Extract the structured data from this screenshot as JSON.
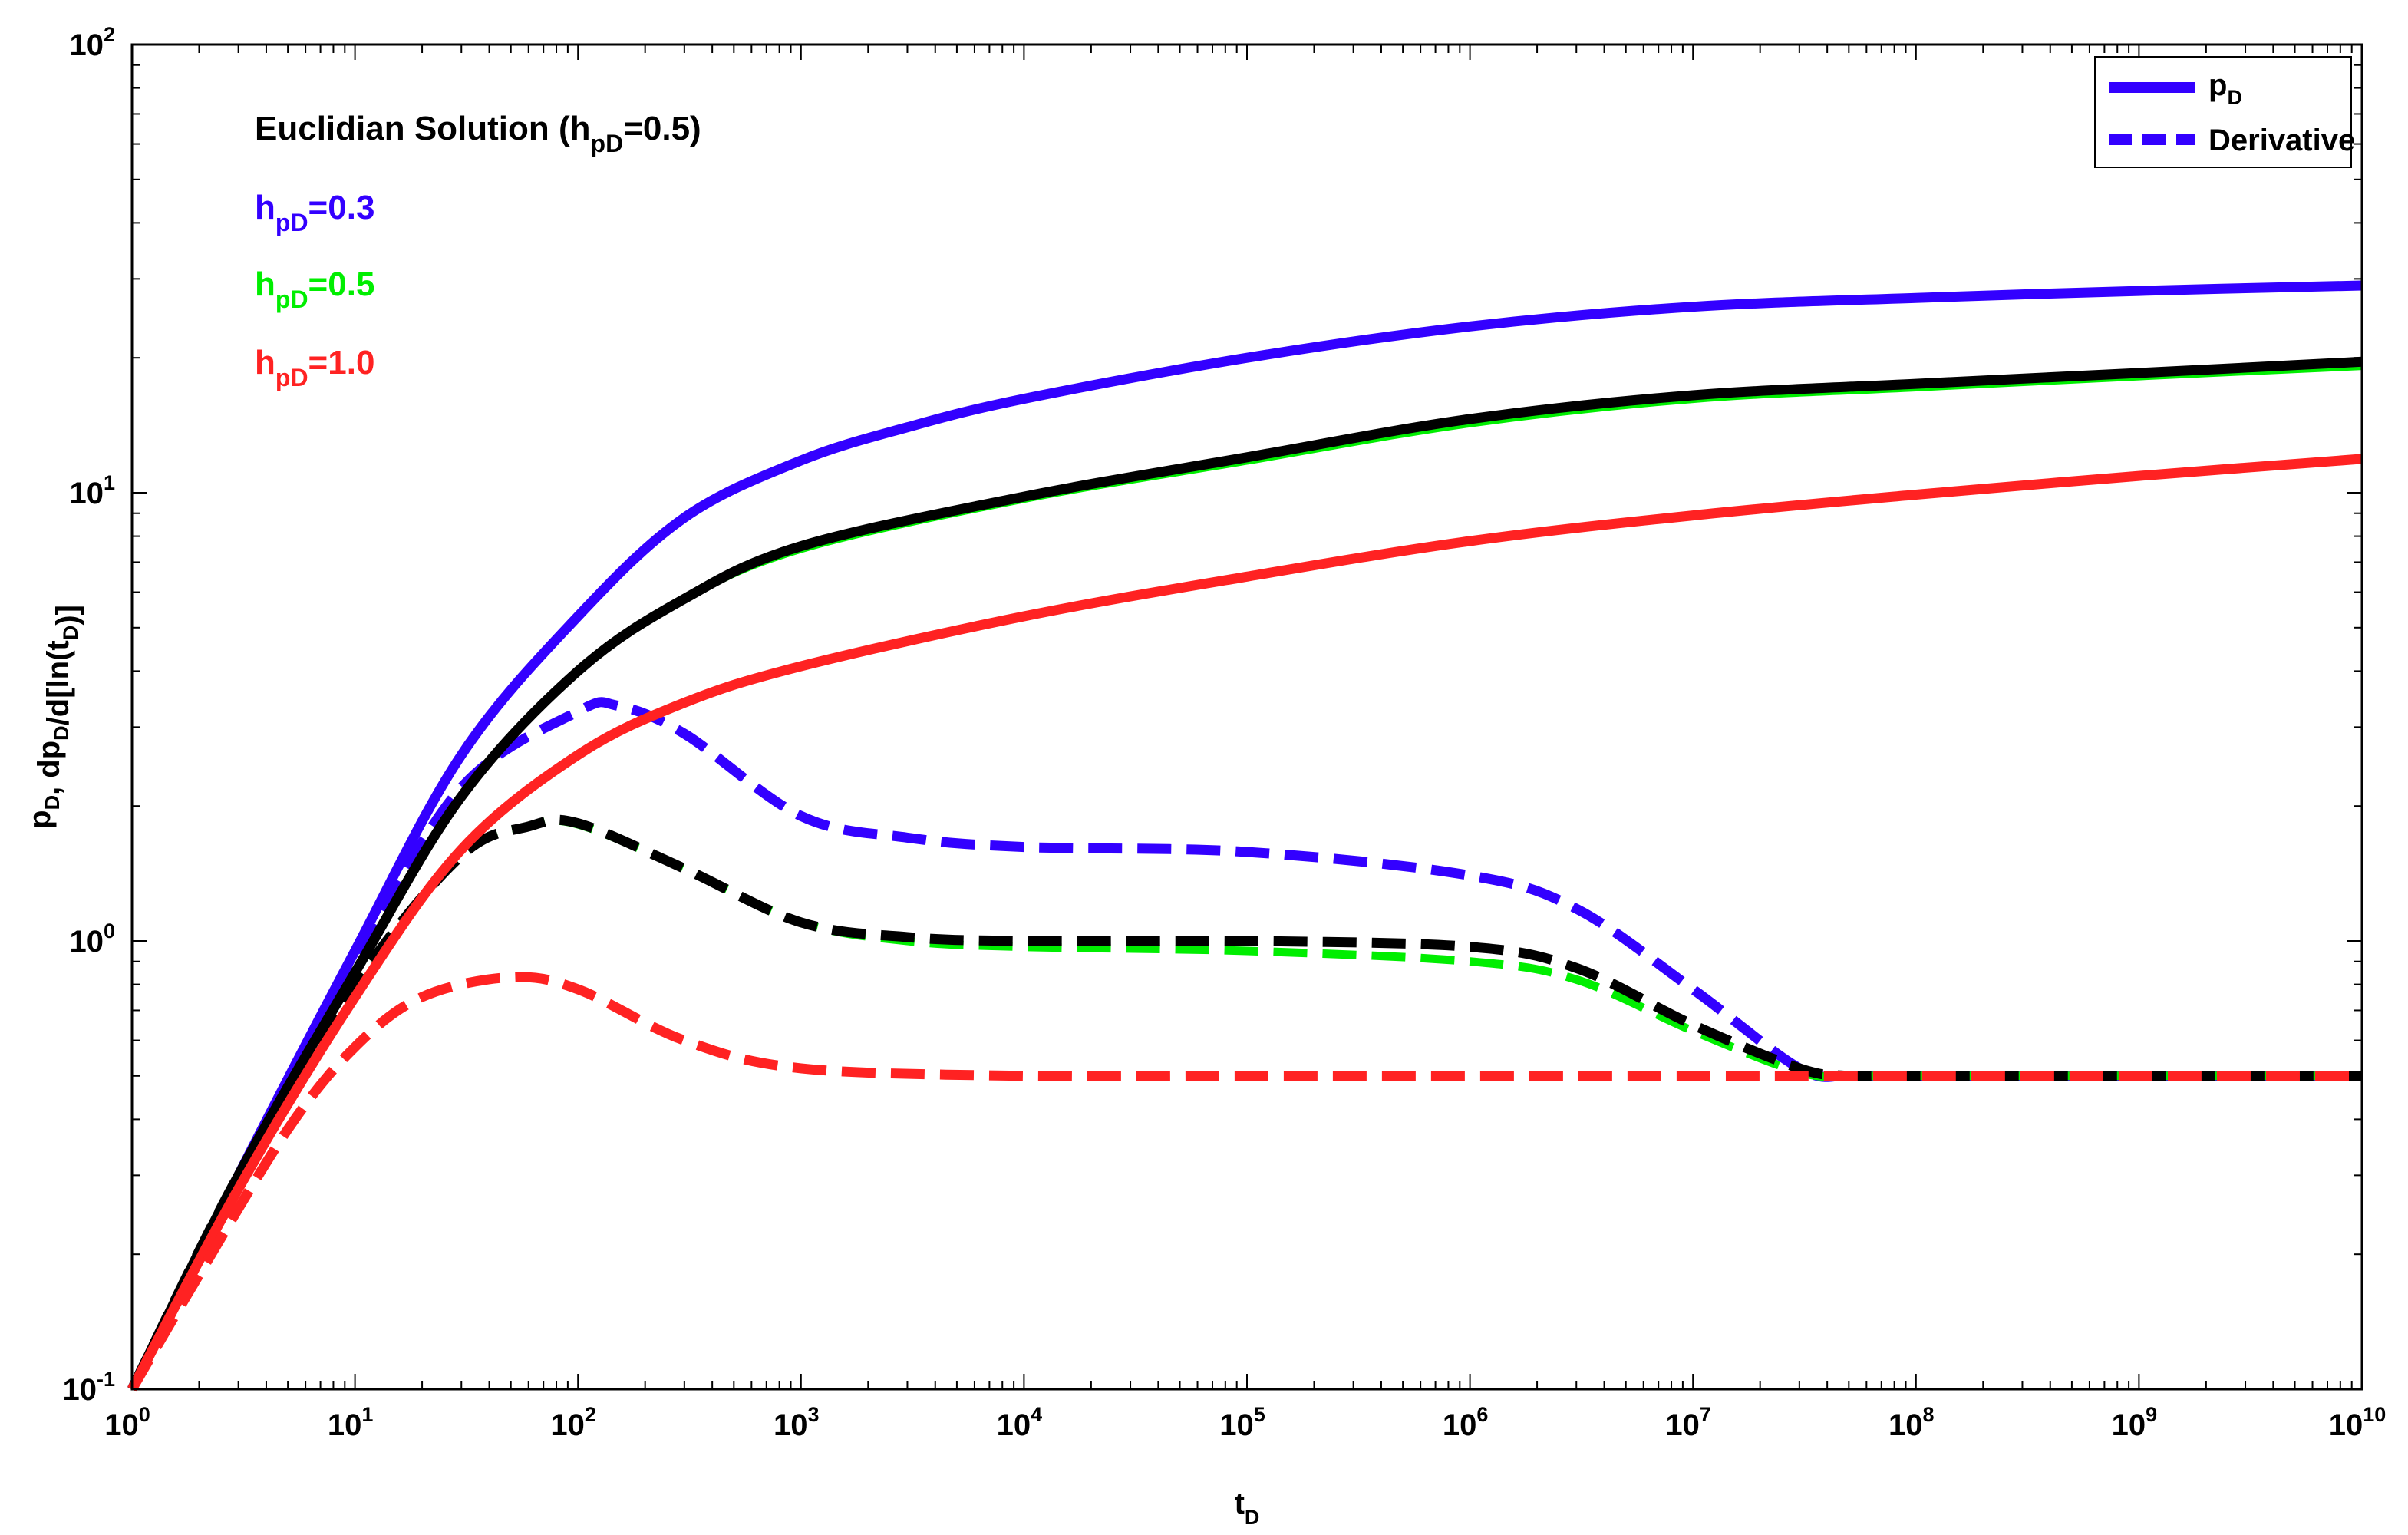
{
  "chart_data": {
    "type": "line",
    "title": "",
    "xlabel": {
      "main": "t",
      "sub": "D"
    },
    "ylabel": {
      "parts": [
        {
          "t": "p",
          "s": "D"
        },
        {
          "t": ", dp",
          "s": "D"
        },
        {
          "t": "/d[ln(t",
          "s": "D"
        },
        {
          "t": ")]",
          "s": ""
        }
      ]
    },
    "x_scale": "log",
    "y_scale": "log",
    "xlim": [
      1,
      10000000000
    ],
    "ylim": [
      0.1,
      100
    ],
    "x_ticks": [
      {
        "value": 1,
        "base": "10",
        "exp": "0"
      },
      {
        "value": 10,
        "base": "10",
        "exp": "1"
      },
      {
        "value": 100,
        "base": "10",
        "exp": "2"
      },
      {
        "value": 1000,
        "base": "10",
        "exp": "3"
      },
      {
        "value": 10000,
        "base": "10",
        "exp": "4"
      },
      {
        "value": 100000,
        "base": "10",
        "exp": "5"
      },
      {
        "value": 1000000,
        "base": "10",
        "exp": "6"
      },
      {
        "value": 10000000,
        "base": "10",
        "exp": "7"
      },
      {
        "value": 100000000,
        "base": "10",
        "exp": "8"
      },
      {
        "value": 1000000000,
        "base": "10",
        "exp": "9"
      },
      {
        "value": 10000000000,
        "base": "10",
        "exp": "10"
      }
    ],
    "y_ticks": [
      {
        "value": 0.1,
        "base": "10",
        "exp": "-1"
      },
      {
        "value": 1,
        "base": "10",
        "exp": "0"
      },
      {
        "value": 10,
        "base": "10",
        "exp": "1"
      },
      {
        "value": 100,
        "base": "10",
        "exp": "2"
      }
    ],
    "grid": false,
    "legend": {
      "position": "top-right",
      "entries": [
        {
          "text": "p",
          "sub": "D",
          "style": "solid",
          "color": "#3300ff"
        },
        {
          "text": "Derivative",
          "sub": "",
          "style": "dashed",
          "color": "#3300ff"
        }
      ]
    },
    "annotations": [
      {
        "text": "Euclidian Solution (h",
        "sub": "pD",
        "tail": "=0.5)",
        "color": "#000000"
      },
      {
        "text": "h",
        "sub": "pD",
        "tail": "=0.3",
        "color": "#3300ff"
      },
      {
        "text": "h",
        "sub": "pD",
        "tail": "=0.5",
        "color": "#00ee00"
      },
      {
        "text": "h",
        "sub": "pD",
        "tail": "=1.0",
        "color": "#ff2222"
      }
    ],
    "series": [
      {
        "color": "#3300ff",
        "style": "solid",
        "x": [
          1,
          3,
          10,
          30,
          100,
          300,
          1000,
          3000,
          10000,
          100000,
          1000000,
          10000000,
          100000000,
          1000000000,
          10000000000
        ],
        "y": [
          0.1,
          0.3,
          0.95,
          2.6,
          5.3,
          8.8,
          11.8,
          14,
          16.2,
          20,
          23.5,
          26,
          27.2,
          28.2,
          29
        ]
      },
      {
        "color": "#3300ff",
        "style": "dashed",
        "x": [
          1,
          3,
          10,
          30,
          100,
          150,
          300,
          1000,
          3000,
          10000,
          100000,
          1000000,
          3000000,
          10000000,
          30000000,
          50000000,
          100000000,
          1000000000,
          10000000000
        ],
        "y": [
          0.1,
          0.3,
          0.9,
          2.2,
          3.25,
          3.35,
          2.9,
          1.9,
          1.7,
          1.62,
          1.58,
          1.4,
          1.18,
          0.78,
          0.52,
          0.5,
          0.5,
          0.5,
          0.5
        ]
      },
      {
        "color": "#00ee00",
        "style": "solid",
        "x": [
          1,
          3,
          10,
          30,
          100,
          300,
          1000,
          10000,
          100000,
          1000000,
          10000000,
          100000000,
          1000000000,
          10000000000
        ],
        "y": [
          0.1,
          0.3,
          0.85,
          2.1,
          4.0,
          5.8,
          7.5,
          9.7,
          11.8,
          14.3,
          16.2,
          17.2,
          18.2,
          19.2
        ]
      },
      {
        "color": "#00ee00",
        "style": "dashed",
        "x": [
          1,
          3,
          10,
          30,
          60,
          100,
          300,
          1000,
          3000,
          10000,
          100000,
          1000000,
          3000000,
          10000000,
          30000000,
          50000000,
          100000000,
          10000000000
        ],
        "y": [
          0.1,
          0.3,
          0.8,
          1.55,
          1.8,
          1.82,
          1.45,
          1.1,
          1.0,
          0.97,
          0.95,
          0.9,
          0.82,
          0.63,
          0.51,
          0.5,
          0.5,
          0.5
        ]
      },
      {
        "color": "#000000",
        "style": "solid",
        "x": [
          1,
          3,
          10,
          30,
          100,
          300,
          1000,
          10000,
          100000,
          1000000,
          10000000,
          100000000,
          1000000000,
          10000000000
        ],
        "y": [
          0.1,
          0.3,
          0.85,
          2.1,
          4.0,
          5.8,
          7.6,
          9.8,
          12,
          14.6,
          16.5,
          17.5,
          18.5,
          19.6
        ]
      },
      {
        "color": "#000000",
        "style": "dashed",
        "x": [
          1,
          3,
          10,
          30,
          60,
          100,
          300,
          1000,
          3000,
          10000,
          100000,
          1000000,
          3000000,
          10000000,
          30000000,
          50000000,
          100000000,
          10000000000
        ],
        "y": [
          0.1,
          0.3,
          0.8,
          1.55,
          1.8,
          1.83,
          1.45,
          1.1,
          1.02,
          1.0,
          1.0,
          0.97,
          0.87,
          0.65,
          0.52,
          0.5,
          0.5,
          0.5
        ]
      },
      {
        "color": "#ff2222",
        "style": "solid",
        "x": [
          1,
          3,
          10,
          30,
          100,
          300,
          1000,
          10000,
          100000,
          1000000,
          10000000,
          100000000,
          1000000000,
          10000000000
        ],
        "y": [
          0.1,
          0.28,
          0.75,
          1.6,
          2.6,
          3.4,
          4.1,
          5.3,
          6.5,
          7.8,
          8.9,
          9.9,
          10.9,
          11.9
        ]
      },
      {
        "color": "#ff2222",
        "style": "dashed",
        "x": [
          1,
          2,
          5,
          10,
          20,
          50,
          100,
          300,
          1000,
          10000,
          100000,
          1000000,
          10000000,
          100000000,
          10000000000
        ],
        "y": [
          0.1,
          0.18,
          0.38,
          0.58,
          0.75,
          0.83,
          0.78,
          0.6,
          0.52,
          0.5,
          0.5,
          0.5,
          0.5,
          0.5,
          0.5
        ]
      }
    ]
  }
}
